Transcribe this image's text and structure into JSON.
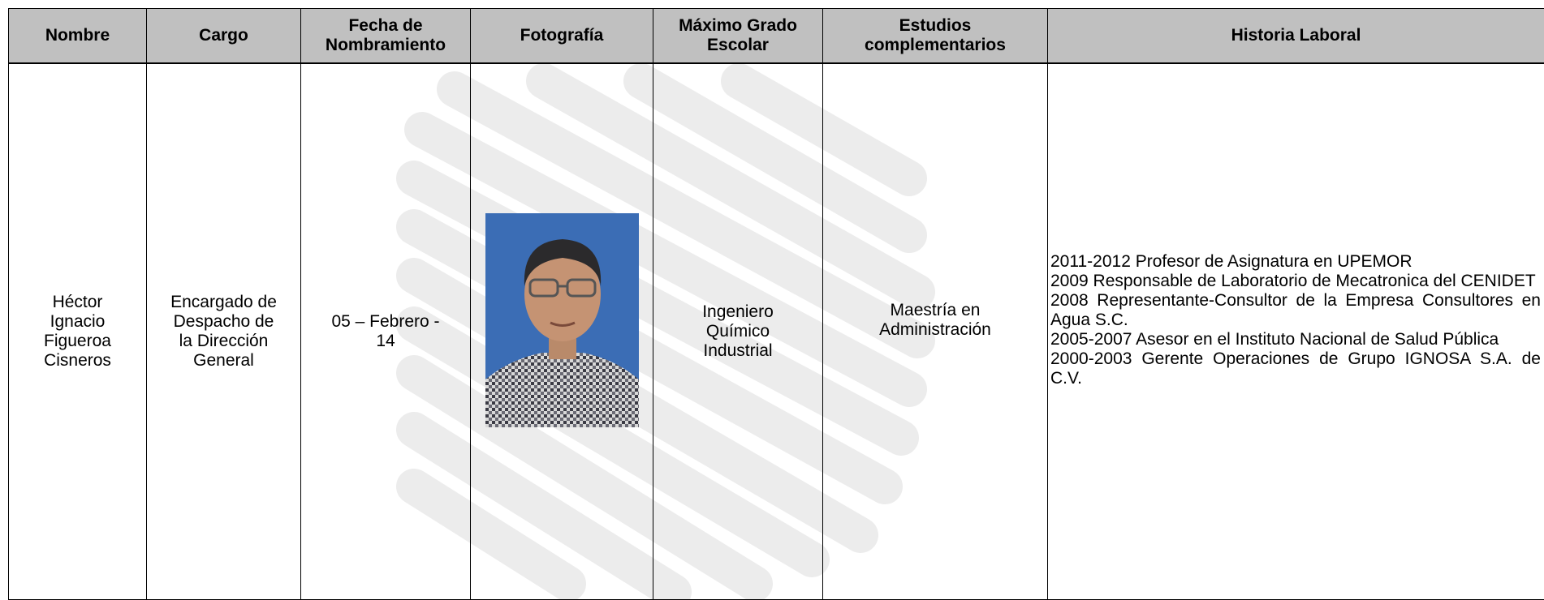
{
  "table": {
    "headers": [
      "Nombre",
      "Cargo",
      "Fecha de Nombramiento",
      "Fotografía",
      "Máximo Grado Escolar",
      "Estudios complementarios",
      "Historia Laboral"
    ],
    "rows": [
      {
        "nombre": "Héctor Ignacio Figueroa Cisneros",
        "cargo": "Encargado de Despacho de la Dirección General",
        "fecha": "05 – Febrero - 14",
        "grado": "Ingeniero Químico Industrial",
        "estudios": "Maestría en Administración",
        "historia": [
          "2011-2012 Profesor de Asignatura en UPEMOR",
          "2009 Responsable de Laboratorio de Mecatronica del CENIDET",
          "2008 Representante-Consultor de la Empresa Consultores en Agua S.C.",
          "2005-2007 Asesor en el Instituto Nacional de Salud Pública",
          "2000-2003 Gerente Operaciones de Grupo IGNOSA S.A. de C.V."
        ]
      }
    ]
  }
}
